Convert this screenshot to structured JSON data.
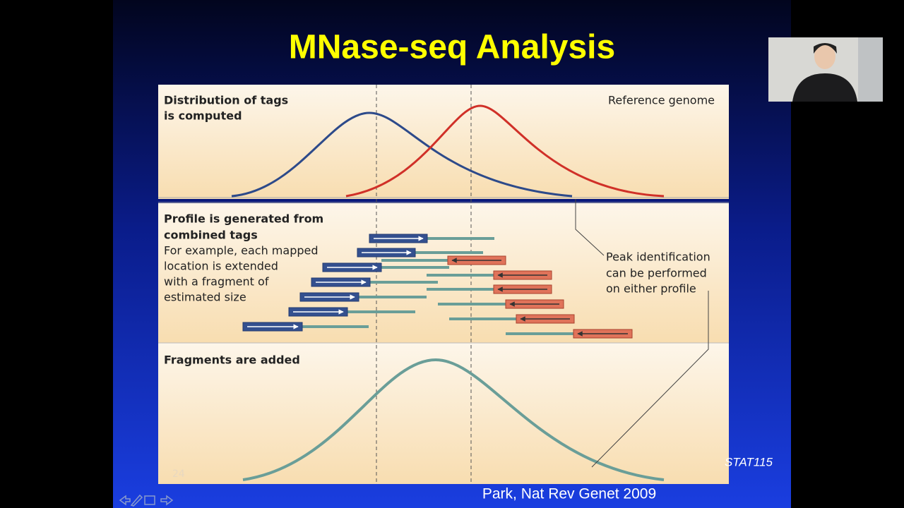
{
  "slide": {
    "title": "MNase-seq Analysis",
    "panel1": {
      "heading": [
        "Distribution of tags",
        "is computed"
      ],
      "label": "Reference genome"
    },
    "panel2": {
      "heading": [
        "Profile is generated from",
        "combined tags"
      ],
      "body": [
        "For example, each mapped",
        "location is extended",
        "with a fragment of",
        "estimated size"
      ],
      "note": [
        "Peak identification",
        "can be performed",
        "on either profile"
      ]
    },
    "panel3": {
      "heading": "Fragments are added"
    },
    "slide_number": "24",
    "course": "STAT115",
    "citation": "Park, Nat Rev Genet 2009"
  }
}
